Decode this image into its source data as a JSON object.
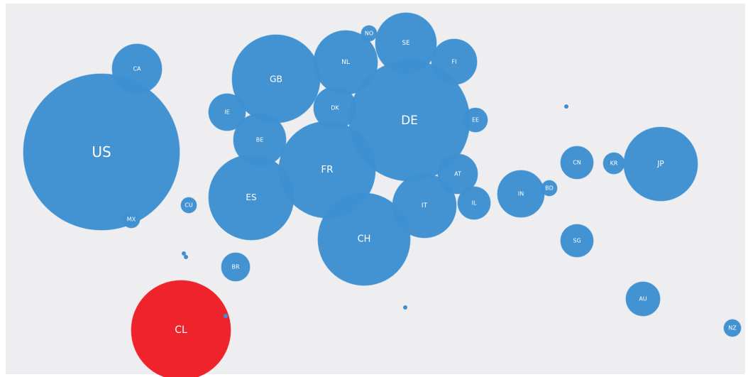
{
  "bubbles": [
    {
      "label": "US",
      "color": "#3d8fd1"
    },
    {
      "label": "CA",
      "color": "#3d8fd1"
    },
    {
      "label": "MX",
      "color": "#3d8fd1"
    },
    {
      "label": "CU",
      "color": "#3d8fd1"
    },
    {
      "label": "GB",
      "color": "#3d8fd1"
    },
    {
      "label": "IE",
      "color": "#3d8fd1"
    },
    {
      "label": "BE",
      "color": "#3d8fd1"
    },
    {
      "label": "ES",
      "color": "#3d8fd1"
    },
    {
      "label": "BR",
      "color": "#3d8fd1"
    },
    {
      "label": "NO",
      "color": "#3d8fd1"
    },
    {
      "label": "NL",
      "color": "#3d8fd1"
    },
    {
      "label": "DK",
      "color": "#3d8fd1"
    },
    {
      "label": "SE",
      "color": "#3d8fd1"
    },
    {
      "label": "FI",
      "color": "#3d8fd1"
    },
    {
      "label": "DE",
      "color": "#3d8fd1"
    },
    {
      "label": "FR",
      "color": "#3d8fd1"
    },
    {
      "label": "EE",
      "color": "#3d8fd1"
    },
    {
      "label": "AT",
      "color": "#3d8fd1"
    },
    {
      "label": "CH",
      "color": "#3d8fd1"
    },
    {
      "label": "IT",
      "color": "#3d8fd1"
    },
    {
      "label": "IL",
      "color": "#3d8fd1"
    },
    {
      "label": "IN",
      "color": "#3d8fd1"
    },
    {
      "label": "BD",
      "color": "#3d8fd1"
    },
    {
      "label": "CN",
      "color": "#3d8fd1"
    },
    {
      "label": "SG",
      "color": "#3d8fd1"
    },
    {
      "label": "KR",
      "color": "#3d8fd1"
    },
    {
      "label": "JP",
      "color": "#3d8fd1"
    },
    {
      "label": "AU",
      "color": "#3d8fd1"
    },
    {
      "label": "NZ",
      "color": "#3d8fd1"
    },
    {
      "label": "CL",
      "color": "#ed1c24"
    }
  ]
}
